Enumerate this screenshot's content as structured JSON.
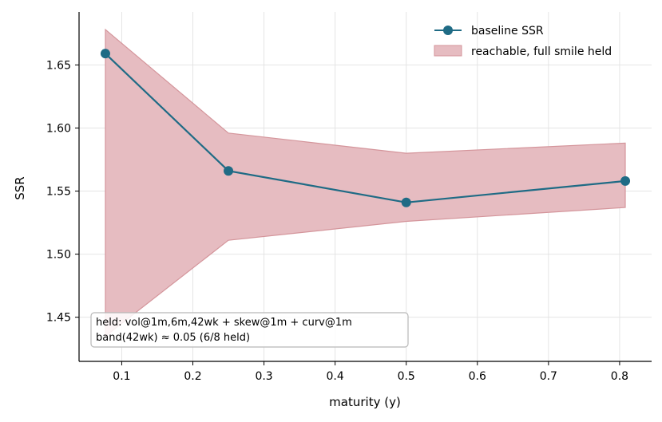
{
  "chart_data": {
    "type": "line",
    "xlabel": "maturity (y)",
    "ylabel": "SSR",
    "xlim": [
      0.04,
      0.845
    ],
    "ylim": [
      1.415,
      1.692
    ],
    "xticks": [
      0.1,
      0.2,
      0.3,
      0.4,
      0.5,
      0.6,
      0.7,
      0.8
    ],
    "yticks": [
      1.45,
      1.5,
      1.55,
      1.6,
      1.65
    ],
    "xtick_labels": [
      "0.1",
      "0.2",
      "0.3",
      "0.4",
      "0.5",
      "0.6",
      "0.7",
      "0.8"
    ],
    "ytick_labels": [
      "1.45",
      "1.50",
      "1.55",
      "1.60",
      "1.65"
    ],
    "grid": true,
    "legend_position": "top-right",
    "series": [
      {
        "name": "baseline SSR",
        "type": "line",
        "marker": "circle",
        "color": "#1f6b85",
        "x": [
          0.077,
          0.25,
          0.5,
          0.808
        ],
        "y": [
          1.659,
          1.566,
          1.541,
          1.558
        ]
      }
    ],
    "bands": [
      {
        "name": "reachable, full smile held",
        "fill_color": "#e6bcc1",
        "edge_color": "#d4959b",
        "x": [
          0.077,
          0.25,
          0.5,
          0.808
        ],
        "upper": [
          1.678,
          1.596,
          1.58,
          1.588
        ],
        "lower": [
          1.435,
          1.511,
          1.526,
          1.537
        ]
      }
    ],
    "annotation": {
      "lines": [
        "held: vol@1m,6m,42wk + skew@1m + curv@1m",
        "band(42wk) ≈ 0.05   (6/8 held)"
      ],
      "position": "bottom-left"
    }
  }
}
